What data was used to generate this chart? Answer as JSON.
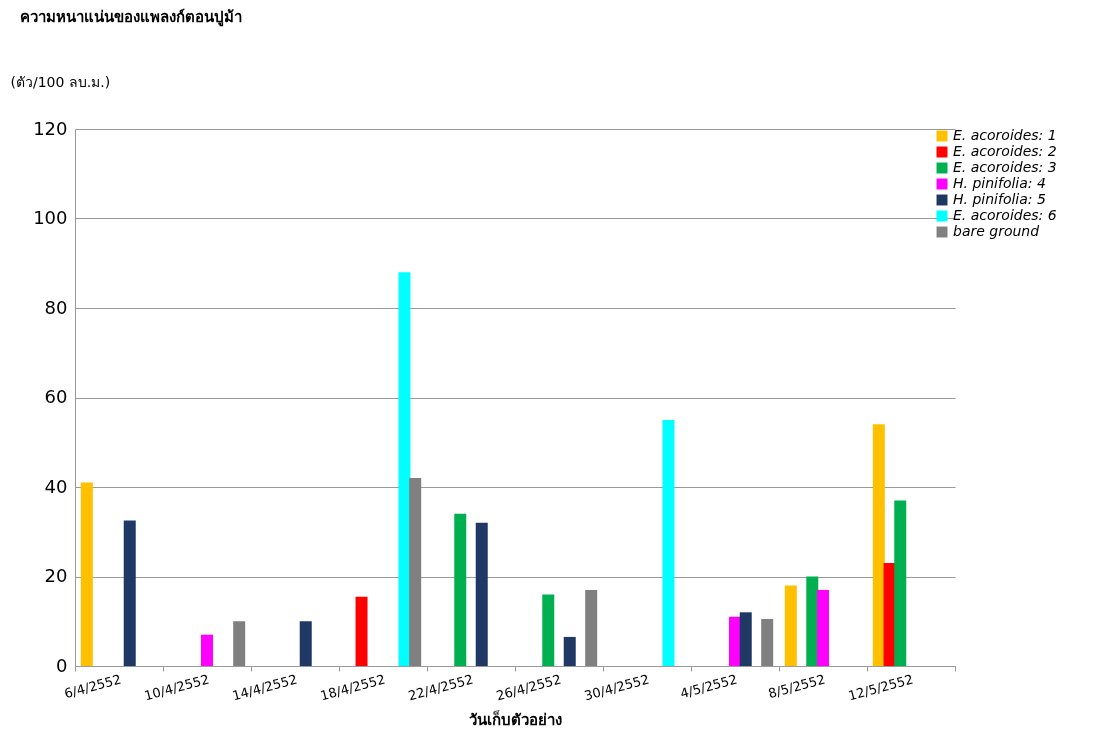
{
  "chart_data": {
    "type": "bar",
    "title": "ความหนาแน่นของแพลงก์ตอนปูม้า",
    "ylabel": "(ตัว/100 ลบ.ม.)",
    "xlabel": "วันเก็บตัวอย่าง",
    "categories": [
      "6/4/2552",
      "10/4/2552",
      "14/4/2552",
      "18/4/2552",
      "22/4/2552",
      "26/4/2552",
      "30/4/2552",
      "4/5/2552",
      "8/5/2552",
      "12/5/2552"
    ],
    "series": [
      {
        "name": "E. acoroides: 1",
        "color": "#ffc000",
        "values": [
          41,
          null,
          null,
          null,
          null,
          null,
          null,
          null,
          18,
          54
        ]
      },
      {
        "name": "E. acoroides: 2",
        "color": "#ff0000",
        "values": [
          null,
          null,
          null,
          15.5,
          null,
          null,
          null,
          null,
          null,
          23
        ]
      },
      {
        "name": "E. acoroides: 3",
        "color": "#00b050",
        "values": [
          null,
          null,
          null,
          null,
          34,
          16,
          null,
          null,
          20,
          37
        ]
      },
      {
        "name": "H. pinifolia: 4",
        "color": "#ff00ff",
        "values": [
          null,
          7,
          null,
          null,
          null,
          null,
          null,
          11,
          17,
          null
        ]
      },
      {
        "name": "H. pinifolia: 5",
        "color": "#1f3864",
        "values": [
          32.5,
          null,
          10,
          null,
          32,
          6.5,
          null,
          12,
          null,
          null
        ]
      },
      {
        "name": "E. acoroides: 6",
        "color": "#00ffff",
        "values": [
          null,
          null,
          null,
          88,
          null,
          null,
          55,
          null,
          null,
          null
        ]
      },
      {
        "name": "bare ground",
        "color": "#808080",
        "values": [
          null,
          10,
          null,
          42,
          null,
          17,
          null,
          10.5,
          null,
          null
        ]
      }
    ],
    "ylim": [
      0,
      120
    ],
    "yticks": [
      0,
      20,
      40,
      60,
      80,
      100,
      120
    ],
    "grid": "y",
    "legend": "top right"
  }
}
